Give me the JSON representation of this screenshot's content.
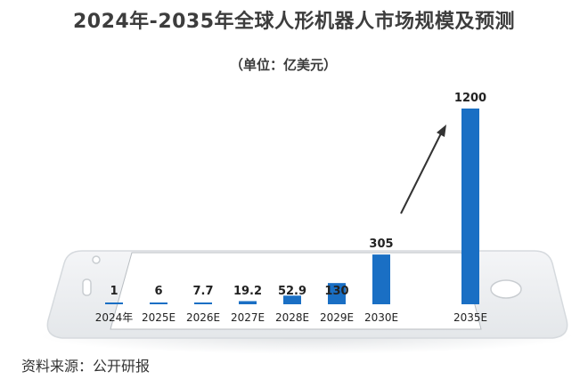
{
  "chart_data": {
    "type": "bar",
    "title": "2024年-2035年全球人形机器人市场规模及预测",
    "unit": "（单位：亿美元）",
    "categories": [
      "2024年",
      "2025E",
      "2026E",
      "2027E",
      "2028E",
      "2029E",
      "2030E",
      "2035E"
    ],
    "values": [
      1,
      6,
      7.7,
      19.2,
      52.9,
      130,
      305,
      1200
    ],
    "value_labels": [
      "1",
      "6",
      "7.7",
      "19.2",
      "52.9",
      "130",
      "305",
      "1200"
    ],
    "ylim": [
      0,
      1200
    ],
    "grid": false,
    "legend": "none",
    "bar_color": "#1a6fc4"
  },
  "source": "资料来源：公开研报",
  "colors": {
    "phone_body": "#eef0f2",
    "phone_edge": "#d9dde1",
    "screen": "#ffffff",
    "arrow": "#333333"
  }
}
